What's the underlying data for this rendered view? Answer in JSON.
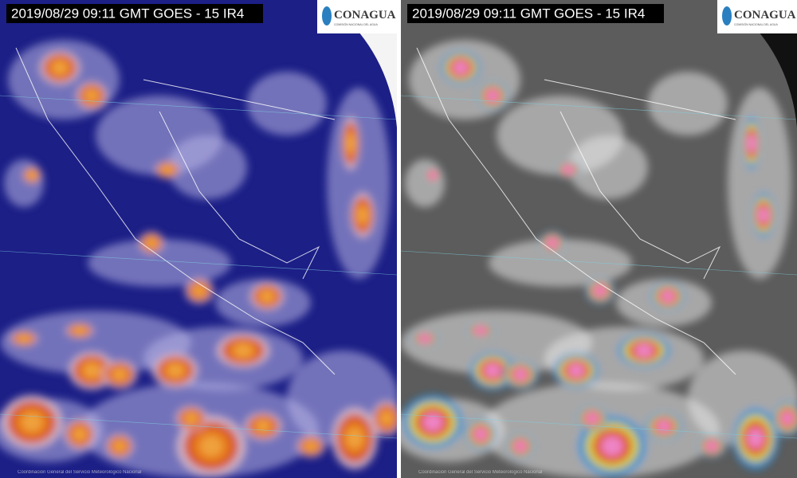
{
  "panels": [
    {
      "title": "2019/08/29 09:11 GMT GOES - 15 IR4",
      "logo": {
        "name": "CONAGUA",
        "subtitle": "COMISIÓN NACIONAL DEL AGUA"
      },
      "credit": "Coordinación General del Servicio Meteorológico Nacional"
    },
    {
      "title": "2019/08/29 09:11 GMT GOES - 15 IR4",
      "logo": {
        "name": "CONAGUA",
        "subtitle": "COMISIÓN NACIONAL DEL AGUA"
      },
      "credit": "Coordinación General del Servicio Meteorológico Nacional"
    }
  ]
}
